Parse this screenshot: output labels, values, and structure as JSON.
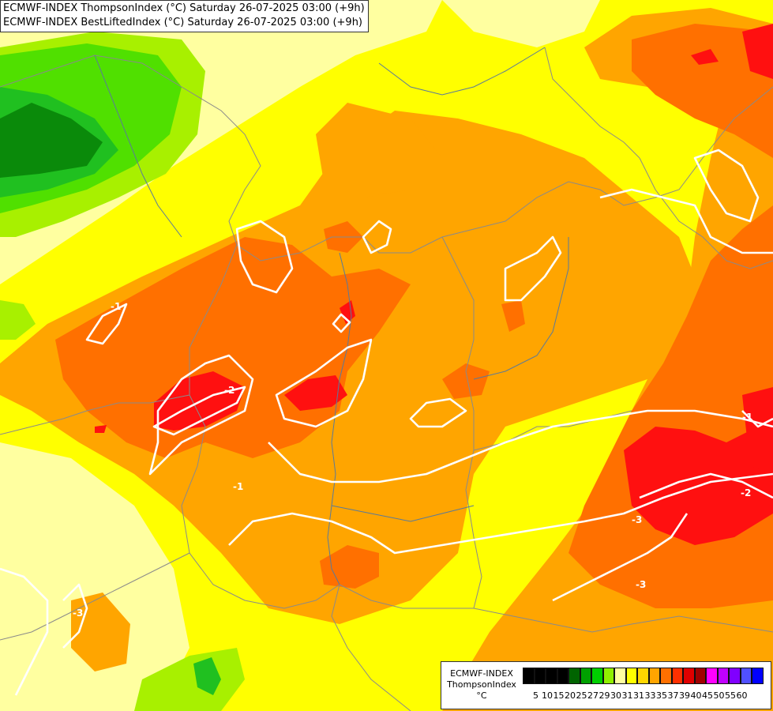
{
  "header": {
    "line1": "ECMWF-INDEX ThompsonIndex (°C) Saturday 26-07-2025 03:00 (+9h)",
    "line2": "ECMWF-INDEX BestLiftedIndex (°C) Saturday 26-07-2025 03:00 (+9h)"
  },
  "map": {
    "fill_field": "ThompsonIndex",
    "contour_field": "BestLiftedIndex",
    "contour_labels": [
      "-1",
      "-2",
      "-3",
      "-1",
      "-3",
      "-2",
      "-1",
      "-3"
    ]
  },
  "legend": {
    "title_lines": [
      "ECMWF-INDEX",
      "ThompsonIndex",
      "°C"
    ],
    "colors": [
      "#000000",
      "#000000",
      "#000000",
      "#000000",
      "#006400",
      "#00a000",
      "#00d000",
      "#90f000",
      "#ffffa0",
      "#ffff00",
      "#ffd700",
      "#ffa500",
      "#ff7000",
      "#ff3000",
      "#e00000",
      "#a00000",
      "#ff00ff",
      "#c000ff",
      "#8000ff",
      "#5050ff",
      "#0000ff"
    ],
    "ticks": [
      "5",
      "10",
      "15",
      "20",
      "25",
      "27",
      "29",
      "30",
      "31",
      "31",
      "33",
      "35",
      "37",
      "39",
      "40",
      "45",
      "50",
      "55",
      "60"
    ]
  }
}
